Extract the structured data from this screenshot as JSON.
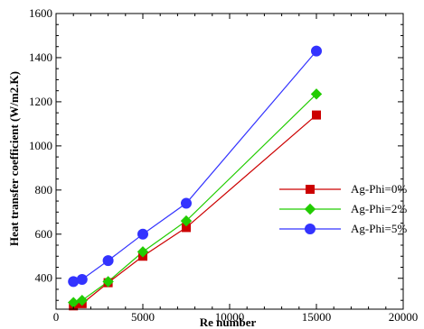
{
  "chart_data": {
    "type": "line",
    "title": "",
    "xlabel": "Re number",
    "ylabel": "Heat transfer coefficient (W/m2.K)",
    "xlim": [
      0,
      20000
    ],
    "ylim": [
      260,
      1600
    ],
    "xticks": [
      0,
      5000,
      10000,
      15000,
      20000
    ],
    "yticks": [
      400,
      600,
      800,
      1000,
      1200,
      1400,
      1600
    ],
    "grid": false,
    "legend_position": "center-right",
    "series": [
      {
        "name": "Ag-Phi=0%",
        "color": "#cc0000",
        "marker": "square",
        "x": [
          1000,
          1500,
          3000,
          5000,
          7500,
          15000
        ],
        "y": [
          275,
          285,
          380,
          500,
          630,
          1140
        ]
      },
      {
        "name": "Ag-Phi=2%",
        "color": "#22cc00",
        "marker": "diamond",
        "x": [
          1000,
          1500,
          3000,
          5000,
          7500,
          15000
        ],
        "y": [
          290,
          300,
          385,
          520,
          660,
          1235
        ]
      },
      {
        "name": "Ag-Phi=5%",
        "color": "#3333ff",
        "marker": "circle",
        "x": [
          1000,
          1500,
          3000,
          5000,
          7500,
          15000
        ],
        "y": [
          385,
          395,
          480,
          600,
          740,
          1430
        ]
      }
    ]
  }
}
